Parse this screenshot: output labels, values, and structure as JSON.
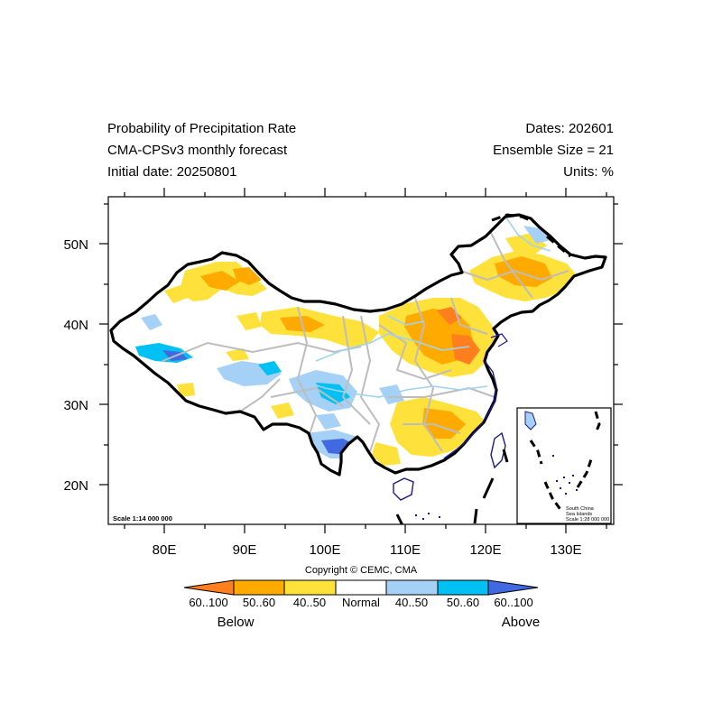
{
  "header": {
    "title_lines": [
      "Probability of Precipitation Rate",
      "CMA-CPSv3 monthly forecast",
      "Initial date: 20250801"
    ],
    "info_lines": [
      "Dates: 202601",
      "Ensemble Size = 21",
      "Units: %"
    ]
  },
  "map": {
    "scale_label": "Scale 1:14 000 000",
    "lat_ticks": [
      "20N",
      "30N",
      "40N",
      "50N"
    ],
    "lon_ticks": [
      "80E",
      "90E",
      "100E",
      "110E",
      "120E",
      "130E"
    ],
    "inset": {
      "label_lines": [
        "South China",
        "Sea Islands",
        "Scale 1:28 000 000"
      ]
    }
  },
  "copyright": "Copyright © CEMC, CMA",
  "colorbar": {
    "bins": [
      {
        "label": "60..100",
        "color": "#ff7f1e",
        "category": "below"
      },
      {
        "label": "50..60",
        "color": "#ffaa00",
        "category": "below"
      },
      {
        "label": "40..50",
        "color": "#ffe13c",
        "category": "below"
      },
      {
        "label": "Normal",
        "color": "#ffffff",
        "category": "normal"
      },
      {
        "label": "40..50",
        "color": "#a6d1f7",
        "category": "above"
      },
      {
        "label": "50..60",
        "color": "#00c0f4",
        "category": "above"
      },
      {
        "label": "60..100",
        "color": "#4169e1",
        "category": "above"
      }
    ],
    "below_label": "Below",
    "above_label": "Above"
  }
}
